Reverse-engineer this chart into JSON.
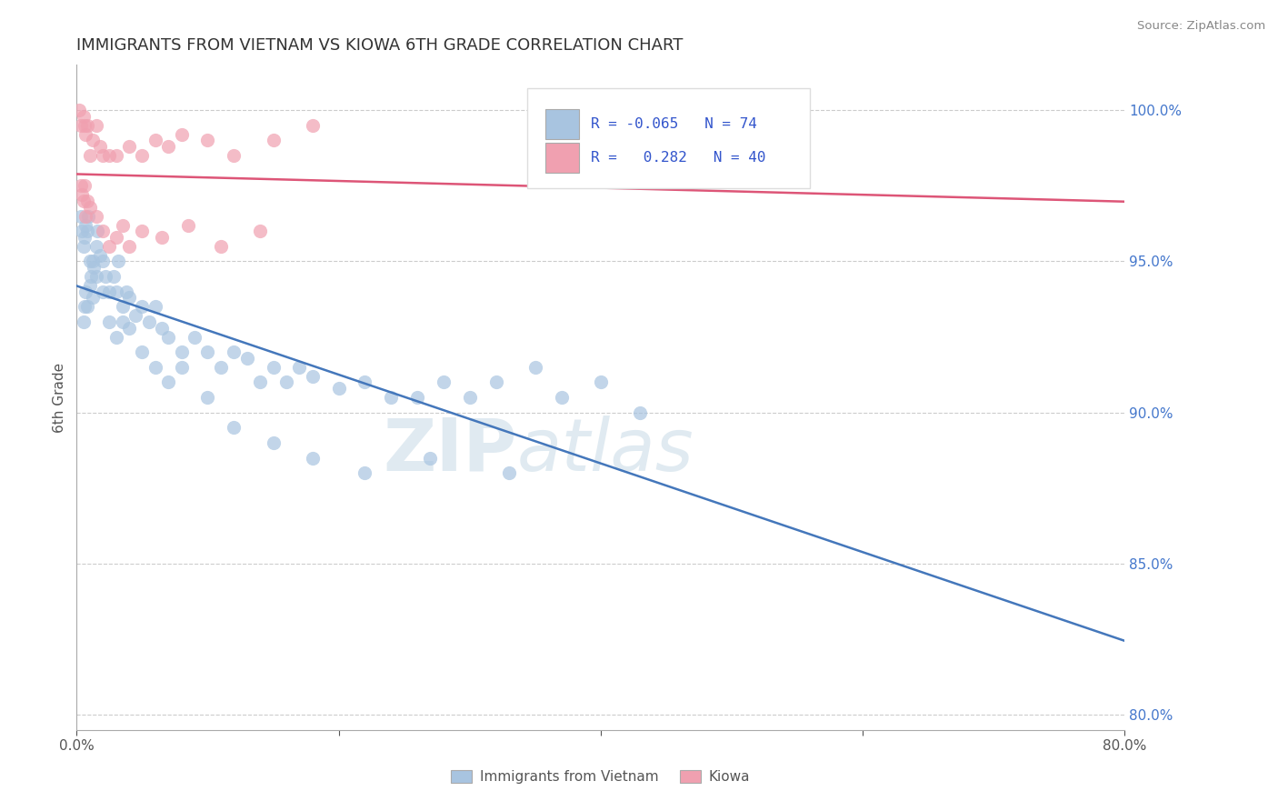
{
  "title": "IMMIGRANTS FROM VIETNAM VS KIOWA 6TH GRADE CORRELATION CHART",
  "source_text": "Source: ZipAtlas.com",
  "ylabel": "6th Grade",
  "xlim": [
    0.0,
    80.0
  ],
  "ylim": [
    79.5,
    101.5
  ],
  "x_ticks": [
    0.0,
    20.0,
    40.0,
    60.0,
    80.0
  ],
  "x_tick_labels": [
    "0.0%",
    "",
    "",
    "",
    "80.0%"
  ],
  "y_ticks": [
    80.0,
    85.0,
    90.0,
    95.0,
    100.0
  ],
  "y_tick_labels": [
    "80.0%",
    "85.0%",
    "90.0%",
    "95.0%",
    "100.0%"
  ],
  "legend_R1": "-0.065",
  "legend_N1": "74",
  "legend_R2": "0.282",
  "legend_N2": "40",
  "legend_label1": "Immigrants from Vietnam",
  "legend_label2": "Kiowa",
  "blue_color": "#a8c4e0",
  "pink_color": "#f0a0b0",
  "blue_line_color": "#4477bb",
  "pink_line_color": "#dd5577",
  "watermark_zip": "ZIP",
  "watermark_atlas": "atlas",
  "blue_x": [
    0.3,
    0.4,
    0.5,
    0.6,
    0.7,
    0.8,
    0.9,
    1.0,
    1.1,
    1.2,
    1.3,
    1.5,
    1.6,
    1.8,
    2.0,
    2.2,
    2.5,
    2.8,
    3.0,
    3.2,
    3.5,
    3.8,
    4.0,
    4.5,
    5.0,
    5.5,
    6.0,
    6.5,
    7.0,
    8.0,
    9.0,
    10.0,
    11.0,
    12.0,
    13.0,
    14.0,
    15.0,
    16.0,
    17.0,
    18.0,
    20.0,
    22.0,
    24.0,
    26.0,
    28.0,
    30.0,
    32.0,
    35.0,
    37.0,
    40.0,
    43.0,
    0.5,
    0.6,
    0.7,
    0.8,
    1.0,
    1.2,
    1.5,
    2.0,
    2.5,
    3.0,
    3.5,
    4.0,
    5.0,
    6.0,
    7.0,
    8.0,
    10.0,
    12.0,
    15.0,
    18.0,
    22.0,
    27.0,
    33.0
  ],
  "blue_y": [
    96.5,
    96.0,
    95.5,
    95.8,
    96.2,
    96.0,
    96.5,
    95.0,
    94.5,
    95.0,
    94.8,
    95.5,
    96.0,
    95.2,
    95.0,
    94.5,
    94.0,
    94.5,
    94.0,
    95.0,
    93.5,
    94.0,
    93.8,
    93.2,
    93.5,
    93.0,
    93.5,
    92.8,
    92.5,
    92.0,
    92.5,
    92.0,
    91.5,
    92.0,
    91.8,
    91.0,
    91.5,
    91.0,
    91.5,
    91.2,
    90.8,
    91.0,
    90.5,
    90.5,
    91.0,
    90.5,
    91.0,
    91.5,
    90.5,
    91.0,
    90.0,
    93.0,
    93.5,
    94.0,
    93.5,
    94.2,
    93.8,
    94.5,
    94.0,
    93.0,
    92.5,
    93.0,
    92.8,
    92.0,
    91.5,
    91.0,
    91.5,
    90.5,
    89.5,
    89.0,
    88.5,
    88.0,
    88.5,
    88.0
  ],
  "pink_x": [
    0.2,
    0.3,
    0.5,
    0.6,
    0.7,
    0.8,
    1.0,
    1.2,
    1.5,
    1.8,
    2.0,
    2.5,
    3.0,
    4.0,
    5.0,
    6.0,
    7.0,
    8.0,
    10.0,
    12.0,
    15.0,
    18.0,
    0.3,
    0.4,
    0.5,
    0.6,
    0.7,
    0.8,
    1.0,
    1.5,
    2.0,
    2.5,
    3.0,
    3.5,
    4.0,
    5.0,
    6.5,
    8.5,
    11.0,
    14.0
  ],
  "pink_y": [
    100.0,
    99.5,
    99.8,
    99.5,
    99.2,
    99.5,
    98.5,
    99.0,
    99.5,
    98.8,
    98.5,
    98.5,
    98.5,
    98.8,
    98.5,
    99.0,
    98.8,
    99.2,
    99.0,
    98.5,
    99.0,
    99.5,
    97.5,
    97.2,
    97.0,
    97.5,
    96.5,
    97.0,
    96.8,
    96.5,
    96.0,
    95.5,
    95.8,
    96.2,
    95.5,
    96.0,
    95.8,
    96.2,
    95.5,
    96.0
  ]
}
